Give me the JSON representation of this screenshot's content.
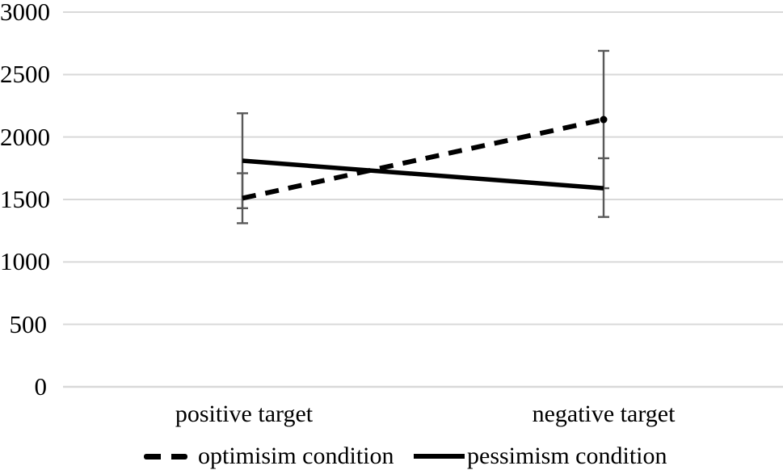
{
  "chart_data": {
    "type": "line",
    "title": "",
    "xlabel": "",
    "ylabel": "",
    "categories": [
      "positive target",
      "negative target"
    ],
    "series": [
      {
        "name": "optimisim condition",
        "line_style": "dashed",
        "values": [
          1510,
          2140
        ],
        "error_low": [
          1310,
          1590
        ],
        "error_high": [
          1710,
          2690
        ],
        "end_marker": true
      },
      {
        "name": "pessimism condition",
        "line_style": "solid",
        "values": [
          1810,
          1590
        ],
        "error_low": [
          1430,
          1360
        ],
        "error_high": [
          2190,
          1830
        ],
        "end_marker": false
      }
    ],
    "ylim": [
      0,
      3000
    ],
    "yticks": [
      0,
      500,
      1000,
      1500,
      2000,
      2500,
      3000
    ],
    "grid": true,
    "legend_position": "bottom",
    "colors": {
      "series_line": "#000000",
      "error_bar": "#595959",
      "gridline": "#d9d9d9",
      "axis_line": "#d9d9d9",
      "text": "#000000"
    }
  }
}
